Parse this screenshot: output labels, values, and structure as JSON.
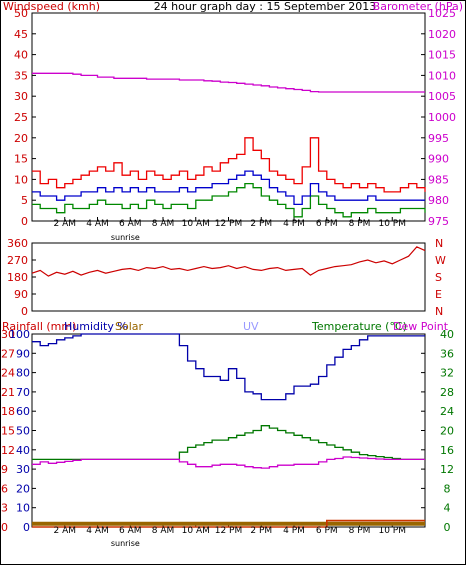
{
  "header": {
    "left_label": "Windspeed (kmh)",
    "title": "24 hour graph day : 15 September 2013",
    "right_label": "Barometer (hPa)"
  },
  "x_labels": [
    "2 AM",
    "4 AM",
    "6 AM",
    "8 AM",
    "10 AM",
    "12 PM",
    "2 PM",
    "4 PM",
    "6 PM",
    "8 PM",
    "10 PM"
  ],
  "sunrise_label": "sunrise",
  "colors": {
    "wind_gust": "#ee0000",
    "wind_avg_green": "#008800",
    "wind_avg_blue": "#0000cc",
    "barometer": "#cc00cc",
    "direction": "#cc0000",
    "humidity": "#0000aa",
    "temperature": "#007700",
    "dewpoint": "#cc00cc",
    "solar": "#996600",
    "rain": "#cc3300",
    "uv": "#9999ff",
    "frame": "#000000"
  },
  "chart_data": [
    {
      "type": "line",
      "name": "wind-barometer",
      "title": "24 hour graph day : 15 September 2013",
      "ylabel": "Windspeed (kmh)",
      "ylabel_right": "Barometer (hPa)",
      "x_hours": [
        0,
        0.5,
        1,
        1.5,
        2,
        2.5,
        3,
        3.5,
        4,
        4.5,
        5,
        5.5,
        6,
        6.5,
        7,
        7.5,
        8,
        8.5,
        9,
        9.5,
        10,
        10.5,
        11,
        11.5,
        12,
        12.5,
        13,
        13.5,
        14,
        14.5,
        15,
        15.5,
        16,
        16.5,
        17,
        17.5,
        18,
        18.5,
        19,
        19.5,
        20,
        20.5,
        21,
        21.5,
        22,
        22.5,
        23,
        23.5,
        24
      ],
      "ylim_left": [
        0,
        50
      ],
      "yticks_left": [
        0,
        5,
        10,
        15,
        20,
        25,
        30,
        35,
        40,
        45,
        50
      ],
      "ylim_right": [
        975,
        1025
      ],
      "yticks_right": [
        975,
        980,
        985,
        990,
        995,
        1000,
        1005,
        1010,
        1015,
        1020,
        1025
      ],
      "series": [
        {
          "key": "gust",
          "values": [
            12,
            9,
            10,
            8,
            9,
            10,
            11,
            12,
            13,
            12,
            14,
            11,
            12,
            10,
            12,
            11,
            10,
            11,
            12,
            10,
            11,
            13,
            12,
            14,
            15,
            16,
            20,
            17,
            15,
            12,
            11,
            10,
            9,
            13,
            20,
            12,
            10,
            9,
            8,
            9,
            8,
            9,
            8,
            7,
            7,
            8,
            9,
            8,
            7
          ]
        },
        {
          "key": "avg_green",
          "values": [
            4,
            3,
            3,
            2,
            4,
            3,
            3,
            4,
            5,
            4,
            4,
            3,
            4,
            3,
            5,
            4,
            3,
            4,
            4,
            3,
            5,
            5,
            6,
            6,
            7,
            8,
            9,
            8,
            6,
            5,
            4,
            3,
            1,
            3,
            6,
            4,
            3,
            2,
            1,
            2,
            2,
            3,
            2,
            2,
            2,
            3,
            3,
            3,
            2
          ]
        },
        {
          "key": "avg_blue",
          "values": [
            7,
            6,
            6,
            5,
            6,
            6,
            7,
            7,
            8,
            7,
            8,
            7,
            8,
            7,
            8,
            7,
            7,
            7,
            8,
            7,
            8,
            8,
            9,
            9,
            10,
            11,
            12,
            11,
            10,
            8,
            7,
            6,
            4,
            6,
            9,
            7,
            6,
            5,
            5,
            5,
            5,
            6,
            5,
            5,
            5,
            5,
            5,
            5,
            5
          ]
        },
        {
          "key": "barometer",
          "values": [
            1010.5,
            1010.5,
            1010.5,
            1010.5,
            1010.5,
            1010.3,
            1010.0,
            1010.0,
            1009.6,
            1009.6,
            1009.3,
            1009.3,
            1009.3,
            1009.3,
            1009.1,
            1009.1,
            1009.1,
            1009.1,
            1008.9,
            1008.9,
            1008.9,
            1008.7,
            1008.6,
            1008.4,
            1008.3,
            1008.1,
            1007.9,
            1007.7,
            1007.5,
            1007.2,
            1007.0,
            1006.8,
            1006.6,
            1006.4,
            1006.1,
            1006.0,
            1006.0,
            1006.0,
            1006.0,
            1006.0,
            1006.0,
            1006.0,
            1006.0,
            1006.0,
            1006.0,
            1006.0,
            1006.0,
            1006.0,
            1006.0
          ]
        }
      ]
    },
    {
      "type": "line",
      "name": "wind-direction",
      "x_hours": [
        0,
        0.5,
        1,
        1.5,
        2,
        2.5,
        3,
        3.5,
        4,
        4.5,
        5,
        5.5,
        6,
        6.5,
        7,
        7.5,
        8,
        8.5,
        9,
        9.5,
        10,
        10.5,
        11,
        11.5,
        12,
        12.5,
        13,
        13.5,
        14,
        14.5,
        15,
        15.5,
        16,
        16.5,
        17,
        17.5,
        18,
        18.5,
        19,
        19.5,
        20,
        20.5,
        21,
        21.5,
        22,
        22.5,
        23,
        23.5,
        24
      ],
      "ylim": [
        0,
        360
      ],
      "yticks": [
        0,
        90,
        180,
        270,
        360
      ],
      "right_labels": [
        "N",
        "W",
        "S",
        "E",
        "N"
      ],
      "values": [
        200,
        215,
        185,
        205,
        195,
        210,
        190,
        205,
        215,
        200,
        210,
        220,
        225,
        215,
        230,
        225,
        235,
        220,
        225,
        215,
        225,
        235,
        225,
        230,
        240,
        225,
        235,
        220,
        215,
        225,
        230,
        215,
        220,
        225,
        190,
        215,
        225,
        235,
        240,
        245,
        260,
        270,
        255,
        265,
        250,
        270,
        290,
        340,
        320
      ]
    },
    {
      "type": "line",
      "name": "humidity-temperature",
      "x_hours": [
        0,
        0.5,
        1,
        1.5,
        2,
        2.5,
        3,
        3.5,
        4,
        4.5,
        5,
        5.5,
        6,
        6.5,
        7,
        7.5,
        8,
        8.5,
        9,
        9.5,
        10,
        10.5,
        11,
        11.5,
        12,
        12.5,
        13,
        13.5,
        14,
        14.5,
        15,
        15.5,
        16,
        16.5,
        17,
        17.5,
        18,
        18.5,
        19,
        19.5,
        20,
        20.5,
        21,
        21.5,
        22,
        22.5,
        23,
        23.5,
        24
      ],
      "left_axis_rain": {
        "ylim": [
          0,
          30
        ],
        "yticks": [
          0,
          3,
          6,
          9,
          12,
          15,
          18,
          21,
          24,
          27,
          30
        ]
      },
      "left_axis_humidity": {
        "ylim": [
          0,
          100
        ],
        "yticks": [
          0,
          10,
          20,
          30,
          40,
          50,
          60,
          70,
          80,
          90,
          100
        ]
      },
      "right_axis_temperature": {
        "ylim": [
          0,
          40
        ],
        "yticks": [
          0,
          4,
          8,
          12,
          16,
          20,
          24,
          28,
          32,
          36,
          40
        ]
      },
      "legend": [
        "Rainfall (mm)",
        "Humidity %",
        "Solar",
        "UV",
        "Temperature (°C)",
        "Dew Point"
      ],
      "series": [
        {
          "key": "humidity",
          "values": [
            96,
            94,
            95,
            97,
            98,
            99,
            100,
            100,
            100,
            100,
            100,
            100,
            100,
            100,
            100,
            100,
            100,
            100,
            94,
            86,
            82,
            78,
            78,
            76,
            82,
            77,
            70,
            69,
            66,
            66,
            66,
            69,
            73,
            73,
            74,
            78,
            84,
            88,
            92,
            94,
            97,
            99,
            99,
            99,
            99,
            99,
            99,
            99,
            99
          ]
        },
        {
          "key": "temperature",
          "values": [
            14,
            14,
            14,
            14,
            14,
            14,
            14,
            14,
            14,
            14,
            14,
            14,
            14,
            14,
            14,
            14,
            14,
            14,
            15.5,
            16.5,
            17,
            17.5,
            18,
            18,
            18.5,
            19,
            19.5,
            20,
            21,
            20.5,
            20,
            19.5,
            19,
            18.5,
            18,
            17.5,
            17,
            16.5,
            16,
            15.5,
            15,
            14.8,
            14.6,
            14.4,
            14.2,
            14,
            14,
            14,
            14
          ]
        },
        {
          "key": "dewpoint",
          "values": [
            13,
            13.5,
            13.2,
            13.4,
            13.6,
            13.8,
            14,
            14,
            14,
            14,
            14,
            14,
            14,
            14,
            14,
            14,
            14,
            14,
            13.5,
            13,
            12.5,
            12.5,
            12.8,
            13,
            13,
            12.8,
            12.5,
            12.3,
            12.2,
            12.5,
            12.8,
            12.8,
            13,
            13,
            13,
            13.5,
            14,
            14.2,
            14.5,
            14.4,
            14.3,
            14.2,
            14.1,
            14,
            14,
            14,
            14,
            14,
            14
          ]
        },
        {
          "key": "solar",
          "values": [
            0.5,
            0.5,
            0.5,
            0.5,
            0.5,
            0.5,
            0.5,
            0.5,
            0.5,
            0.5,
            0.5,
            0.5,
            0.5,
            0.5,
            0.5,
            0.5,
            0.5,
            0.5,
            0.5,
            0.5,
            0.5,
            0.5,
            0.5,
            0.5,
            0.5,
            0.5,
            0.5,
            0.5,
            0.5,
            0.5,
            0.5,
            0.5,
            0.5,
            0.5,
            0.5,
            0.5,
            0.5,
            0.5,
            0.5,
            0.5,
            0.5,
            0.5,
            0.5,
            0.5,
            0.5,
            0.5,
            0.5,
            0.5,
            0.5
          ]
        },
        {
          "key": "rain",
          "values": [
            0,
            0,
            0,
            0,
            0,
            0,
            0,
            0,
            0,
            0,
            0,
            0,
            0,
            0,
            0,
            0,
            0,
            0,
            0,
            0,
            0,
            0,
            0,
            0,
            0,
            0,
            0,
            0,
            0,
            0,
            0,
            0,
            0,
            0,
            0,
            0,
            1,
            1,
            1,
            1,
            1,
            1,
            1,
            1,
            1,
            1,
            1,
            1,
            1
          ]
        }
      ]
    }
  ]
}
